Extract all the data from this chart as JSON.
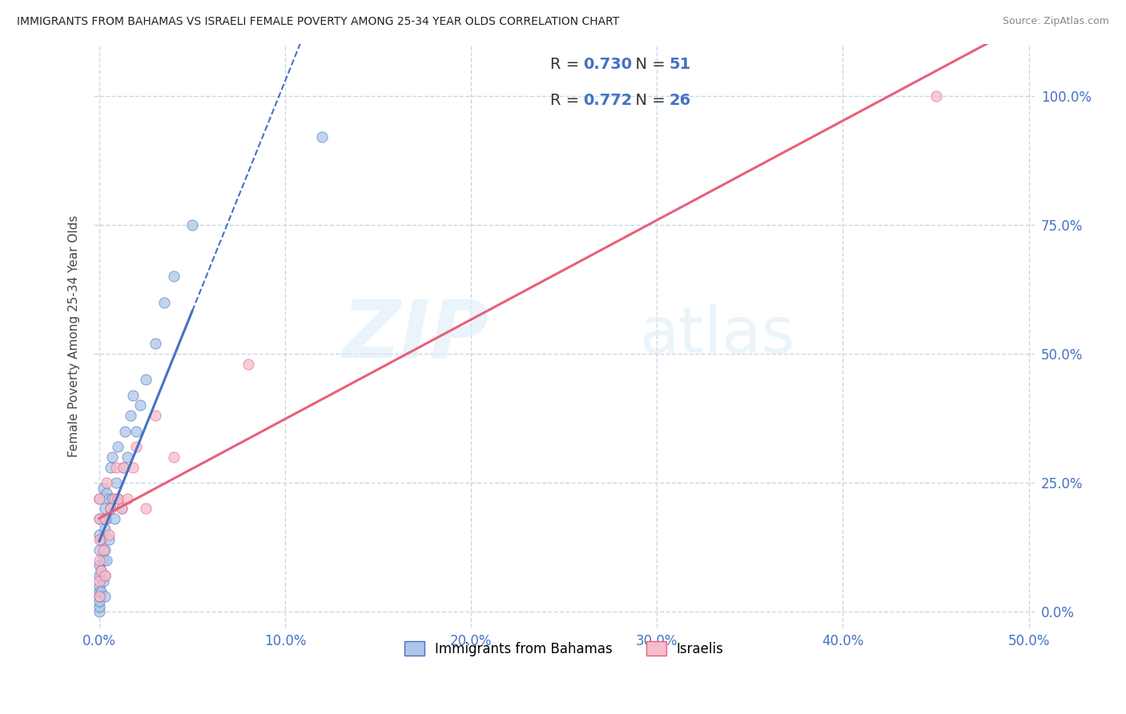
{
  "title": "IMMIGRANTS FROM BAHAMAS VS ISRAELI FEMALE POVERTY AMONG 25-34 YEAR OLDS CORRELATION CHART",
  "source": "Source: ZipAtlas.com",
  "ylabel": "Female Poverty Among 25-34 Year Olds",
  "xlim": [
    -0.003,
    0.503
  ],
  "ylim": [
    -0.03,
    1.1
  ],
  "x_ticks": [
    0.0,
    0.1,
    0.2,
    0.3,
    0.4,
    0.5
  ],
  "x_tick_labels": [
    "0.0%",
    "10.0%",
    "20.0%",
    "30.0%",
    "40.0%",
    "50.0%"
  ],
  "y_ticks": [
    0.0,
    0.25,
    0.5,
    0.75,
    1.0
  ],
  "y_tick_labels": [
    "0.0%",
    "25.0%",
    "50.0%",
    "75.0%",
    "100.0%"
  ],
  "R_blue": 0.73,
  "N_blue": 51,
  "R_pink": 0.772,
  "N_pink": 26,
  "blue_color": "#aec6e8",
  "pink_color": "#f5bccb",
  "blue_line_color": "#4472c4",
  "pink_line_color": "#e8607a",
  "legend_label_blue": "Immigrants from Bahamas",
  "legend_label_pink": "Israelis",
  "watermark_zip": "ZIP",
  "watermark_atlas": "atlas",
  "background_color": "#ffffff",
  "grid_color": "#c8d8e8",
  "blue_scatter_x": [
    0.0,
    0.0,
    0.0,
    0.0,
    0.0,
    0.0,
    0.0,
    0.0,
    0.0,
    0.0,
    0.0,
    0.0,
    0.001,
    0.001,
    0.001,
    0.002,
    0.002,
    0.002,
    0.002,
    0.003,
    0.003,
    0.003,
    0.003,
    0.003,
    0.004,
    0.004,
    0.004,
    0.005,
    0.005,
    0.006,
    0.006,
    0.007,
    0.007,
    0.008,
    0.009,
    0.01,
    0.01,
    0.012,
    0.013,
    0.014,
    0.015,
    0.017,
    0.018,
    0.02,
    0.022,
    0.025,
    0.03,
    0.035,
    0.04,
    0.05,
    0.12
  ],
  "blue_scatter_y": [
    0.0,
    0.01,
    0.02,
    0.03,
    0.04,
    0.05,
    0.07,
    0.09,
    0.12,
    0.15,
    0.18,
    0.22,
    0.04,
    0.08,
    0.14,
    0.06,
    0.1,
    0.18,
    0.24,
    0.03,
    0.07,
    0.12,
    0.16,
    0.2,
    0.1,
    0.18,
    0.23,
    0.14,
    0.22,
    0.2,
    0.28,
    0.22,
    0.3,
    0.18,
    0.25,
    0.22,
    0.32,
    0.2,
    0.28,
    0.35,
    0.3,
    0.38,
    0.42,
    0.35,
    0.4,
    0.45,
    0.52,
    0.6,
    0.65,
    0.75,
    0.92
  ],
  "pink_scatter_x": [
    0.0,
    0.0,
    0.0,
    0.0,
    0.0,
    0.0,
    0.001,
    0.002,
    0.003,
    0.003,
    0.004,
    0.005,
    0.006,
    0.008,
    0.009,
    0.01,
    0.012,
    0.013,
    0.015,
    0.018,
    0.02,
    0.025,
    0.03,
    0.04,
    0.08,
    0.45
  ],
  "pink_scatter_y": [
    0.03,
    0.06,
    0.1,
    0.14,
    0.18,
    0.22,
    0.08,
    0.12,
    0.07,
    0.18,
    0.25,
    0.15,
    0.2,
    0.22,
    0.28,
    0.22,
    0.2,
    0.28,
    0.22,
    0.28,
    0.32,
    0.2,
    0.38,
    0.3,
    0.48,
    1.0
  ]
}
